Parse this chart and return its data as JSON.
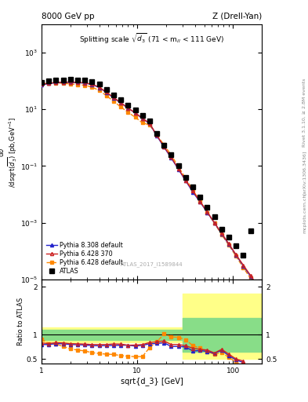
{
  "title_left": "8000 GeV pp",
  "title_right": "Z (Drell-Yan)",
  "plot_title": "Splitting scale $\\sqrt{d_3}$ (71 < m$_{ll}$ < 111 GeV)",
  "ylabel_main": "d$\\sigma$\n/dsqrt($\\overline{d_3}$) [pb,GeV$^{-1}$]",
  "ylabel_ratio": "Ratio to ATLAS",
  "xlabel": "sqrt{d_3} [GeV]",
  "watermark": "ATLAS_2017_I1589844",
  "right_label": "Rivet 3.1.10, ≥ 2.8M events",
  "arxiv_label": "[arXiv:1306.3436]",
  "mcplots_label": "mcplots.cern.ch",
  "xlim": [
    1.0,
    200.0
  ],
  "ylim_main": [
    1e-05,
    10000.0
  ],
  "ylim_ratio": [
    0.4,
    2.1
  ],
  "atlas_x": [
    1.0,
    1.189,
    1.414,
    1.682,
    2.0,
    2.378,
    2.828,
    3.364,
    4.0,
    4.757,
    5.657,
    6.727,
    8.0,
    9.514,
    11.31,
    13.45,
    16.0,
    19.03,
    22.63,
    26.91,
    32.0,
    38.05,
    45.25,
    53.82,
    64.0,
    76.11,
    90.51,
    107.6,
    128.0,
    152.2
  ],
  "atlas_y": [
    90,
    100,
    105,
    108,
    110,
    108,
    105,
    95,
    75,
    50,
    32,
    21,
    14,
    9.5,
    6.0,
    3.8,
    1.4,
    0.55,
    0.25,
    0.1,
    0.04,
    0.018,
    0.008,
    0.0035,
    0.0016,
    0.0006,
    0.0003,
    0.00015,
    7e-05,
    0.0005
  ],
  "py6_370_x": [
    1.0,
    1.189,
    1.414,
    1.682,
    2.0,
    2.378,
    2.828,
    3.364,
    4.0,
    4.757,
    5.657,
    6.727,
    8.0,
    9.514,
    11.31,
    13.45,
    16.0,
    19.03,
    22.63,
    26.91,
    32.0,
    38.05,
    45.25,
    53.82,
    64.0,
    76.11,
    90.51,
    107.6,
    128.0,
    152.2,
    181.0
  ],
  "py6_370_y": [
    75,
    82,
    88,
    90,
    90,
    88,
    85,
    76,
    60,
    40,
    26,
    17,
    11,
    7.5,
    4.8,
    3.2,
    1.2,
    0.48,
    0.2,
    0.08,
    0.031,
    0.013,
    0.0056,
    0.0024,
    0.001,
    0.00042,
    0.00018,
    7.5e-05,
    3.2e-05,
    1.4e-05,
    5.8e-06
  ],
  "py6_def_x": [
    1.0,
    1.189,
    1.414,
    1.682,
    2.0,
    2.378,
    2.828,
    3.364,
    4.0,
    4.757,
    5.657,
    6.727,
    8.0,
    9.514,
    11.31,
    13.45,
    16.0,
    19.03,
    22.63,
    26.91,
    32.0,
    38.05,
    45.25,
    53.82,
    64.0,
    76.11,
    90.51,
    107.6,
    128.0,
    152.2,
    181.0
  ],
  "py6_def_y": [
    82,
    82,
    85,
    82,
    78,
    74,
    70,
    60,
    46,
    30,
    19,
    12,
    7.8,
    5.2,
    3.3,
    2.8,
    1.2,
    0.56,
    0.24,
    0.095,
    0.036,
    0.014,
    0.0058,
    0.0023,
    0.00095,
    0.00038,
    0.00016,
    6.5e-05,
    2.6e-05,
    1.1e-05,
    4.3e-06
  ],
  "py8_def_x": [
    1.0,
    1.189,
    1.414,
    1.682,
    2.0,
    2.378,
    2.828,
    3.364,
    4.0,
    4.757,
    5.657,
    6.727,
    8.0,
    9.514,
    11.31,
    13.45,
    16.0,
    19.03,
    22.63,
    26.91,
    32.0,
    38.05,
    45.25,
    53.82,
    64.0,
    76.11,
    90.51,
    107.6,
    128.0,
    152.2,
    181.0
  ],
  "py8_def_y": [
    72,
    80,
    86,
    88,
    88,
    86,
    83,
    74,
    58,
    39,
    25,
    16.5,
    11,
    7.3,
    4.7,
    3.1,
    1.15,
    0.46,
    0.19,
    0.076,
    0.03,
    0.012,
    0.0054,
    0.0023,
    0.00098,
    0.00041,
    0.00017,
    7.2e-05,
    3e-05,
    1.3e-05,
    5.4e-06
  ],
  "py6_370_color": "#cc2222",
  "py6_def_color": "#ff8800",
  "py8_def_color": "#2222cc",
  "atlas_color": "black",
  "band_x_break": 30.0,
  "green_lo1": 0.9,
  "green_hi1": 1.1,
  "green_lo2": 0.65,
  "green_hi2": 1.35,
  "yellow_lo1": 0.85,
  "yellow_hi1": 1.15,
  "yellow_lo2": 0.5,
  "yellow_hi2": 1.85
}
